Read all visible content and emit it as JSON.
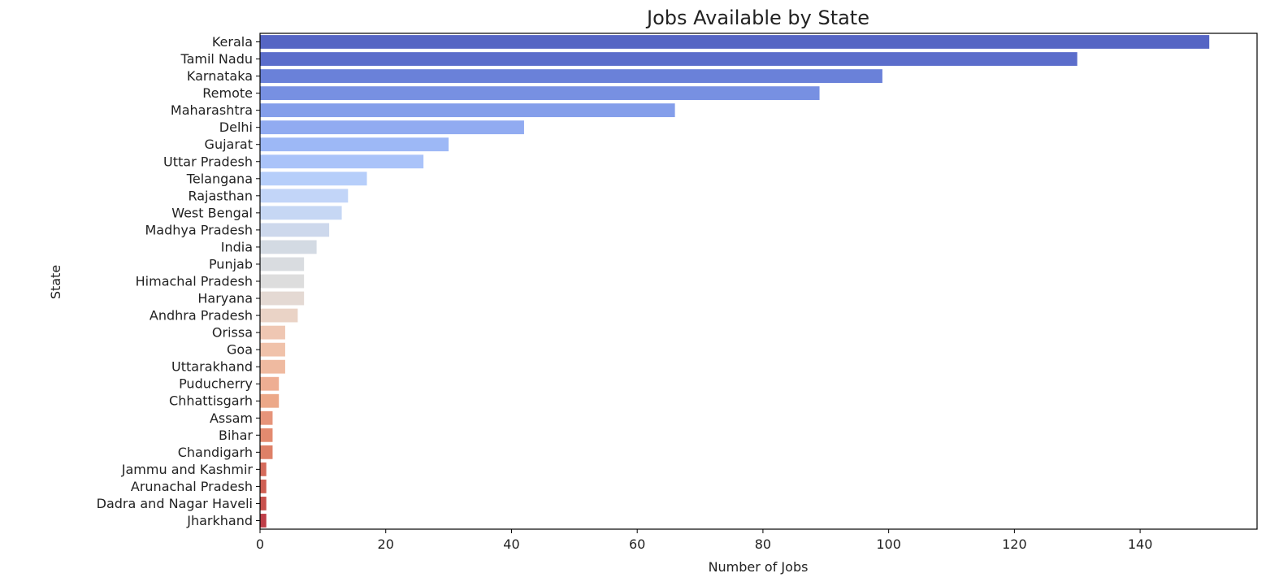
{
  "chart_data": {
    "type": "bar",
    "orientation": "horizontal",
    "title": "Jobs Available by State",
    "xlabel": "Number of Jobs",
    "ylabel": "State",
    "xlim": [
      0,
      158.6
    ],
    "xticks": [
      0,
      20,
      40,
      60,
      80,
      100,
      120,
      140
    ],
    "grid": false,
    "palette": "coolwarm",
    "categories": [
      "Kerala",
      "Tamil Nadu",
      "Karnataka",
      "Remote",
      "Maharashtra",
      "Delhi",
      "Gujarat",
      "Uttar Pradesh",
      "Telangana",
      "Rajasthan",
      "West Bengal",
      "Madhya Pradesh",
      "India",
      "Punjab",
      "Himachal Pradesh",
      "Haryana",
      "Andhra Pradesh",
      "Orissa",
      "Goa",
      "Uttarakhand",
      "Puducherry",
      "Chhattisgarh",
      "Assam",
      "Bihar",
      "Chandigarh",
      "Jammu and Kashmir",
      "Arunachal Pradesh",
      "Dadra and Nagar Haveli",
      "Jharkhand"
    ],
    "values": [
      151,
      130,
      99,
      89,
      66,
      42,
      30,
      26,
      17,
      14,
      13,
      11,
      9,
      7,
      7,
      7,
      6,
      4,
      4,
      4,
      3,
      3,
      2,
      2,
      2,
      1,
      1,
      1,
      1
    ],
    "colors": [
      "#5565c4",
      "#5b6dcb",
      "#6a81d9",
      "#7790e2",
      "#849eea",
      "#91abf1",
      "#9db8f6",
      "#aac3f9",
      "#b6cefa",
      "#c2d5f8",
      "#c6d7f4",
      "#cdd8ec",
      "#d3dae3",
      "#d9dce0",
      "#dddddd",
      "#e4d9d3",
      "#ead3c6",
      "#efc7b3",
      "#f0c2aa",
      "#efbaa0",
      "#eeae93",
      "#eca888",
      "#e6947a",
      "#e38a6f",
      "#de8067",
      "#d56b5b",
      "#cf5f53",
      "#c8514d",
      "#bf3e48"
    ]
  }
}
